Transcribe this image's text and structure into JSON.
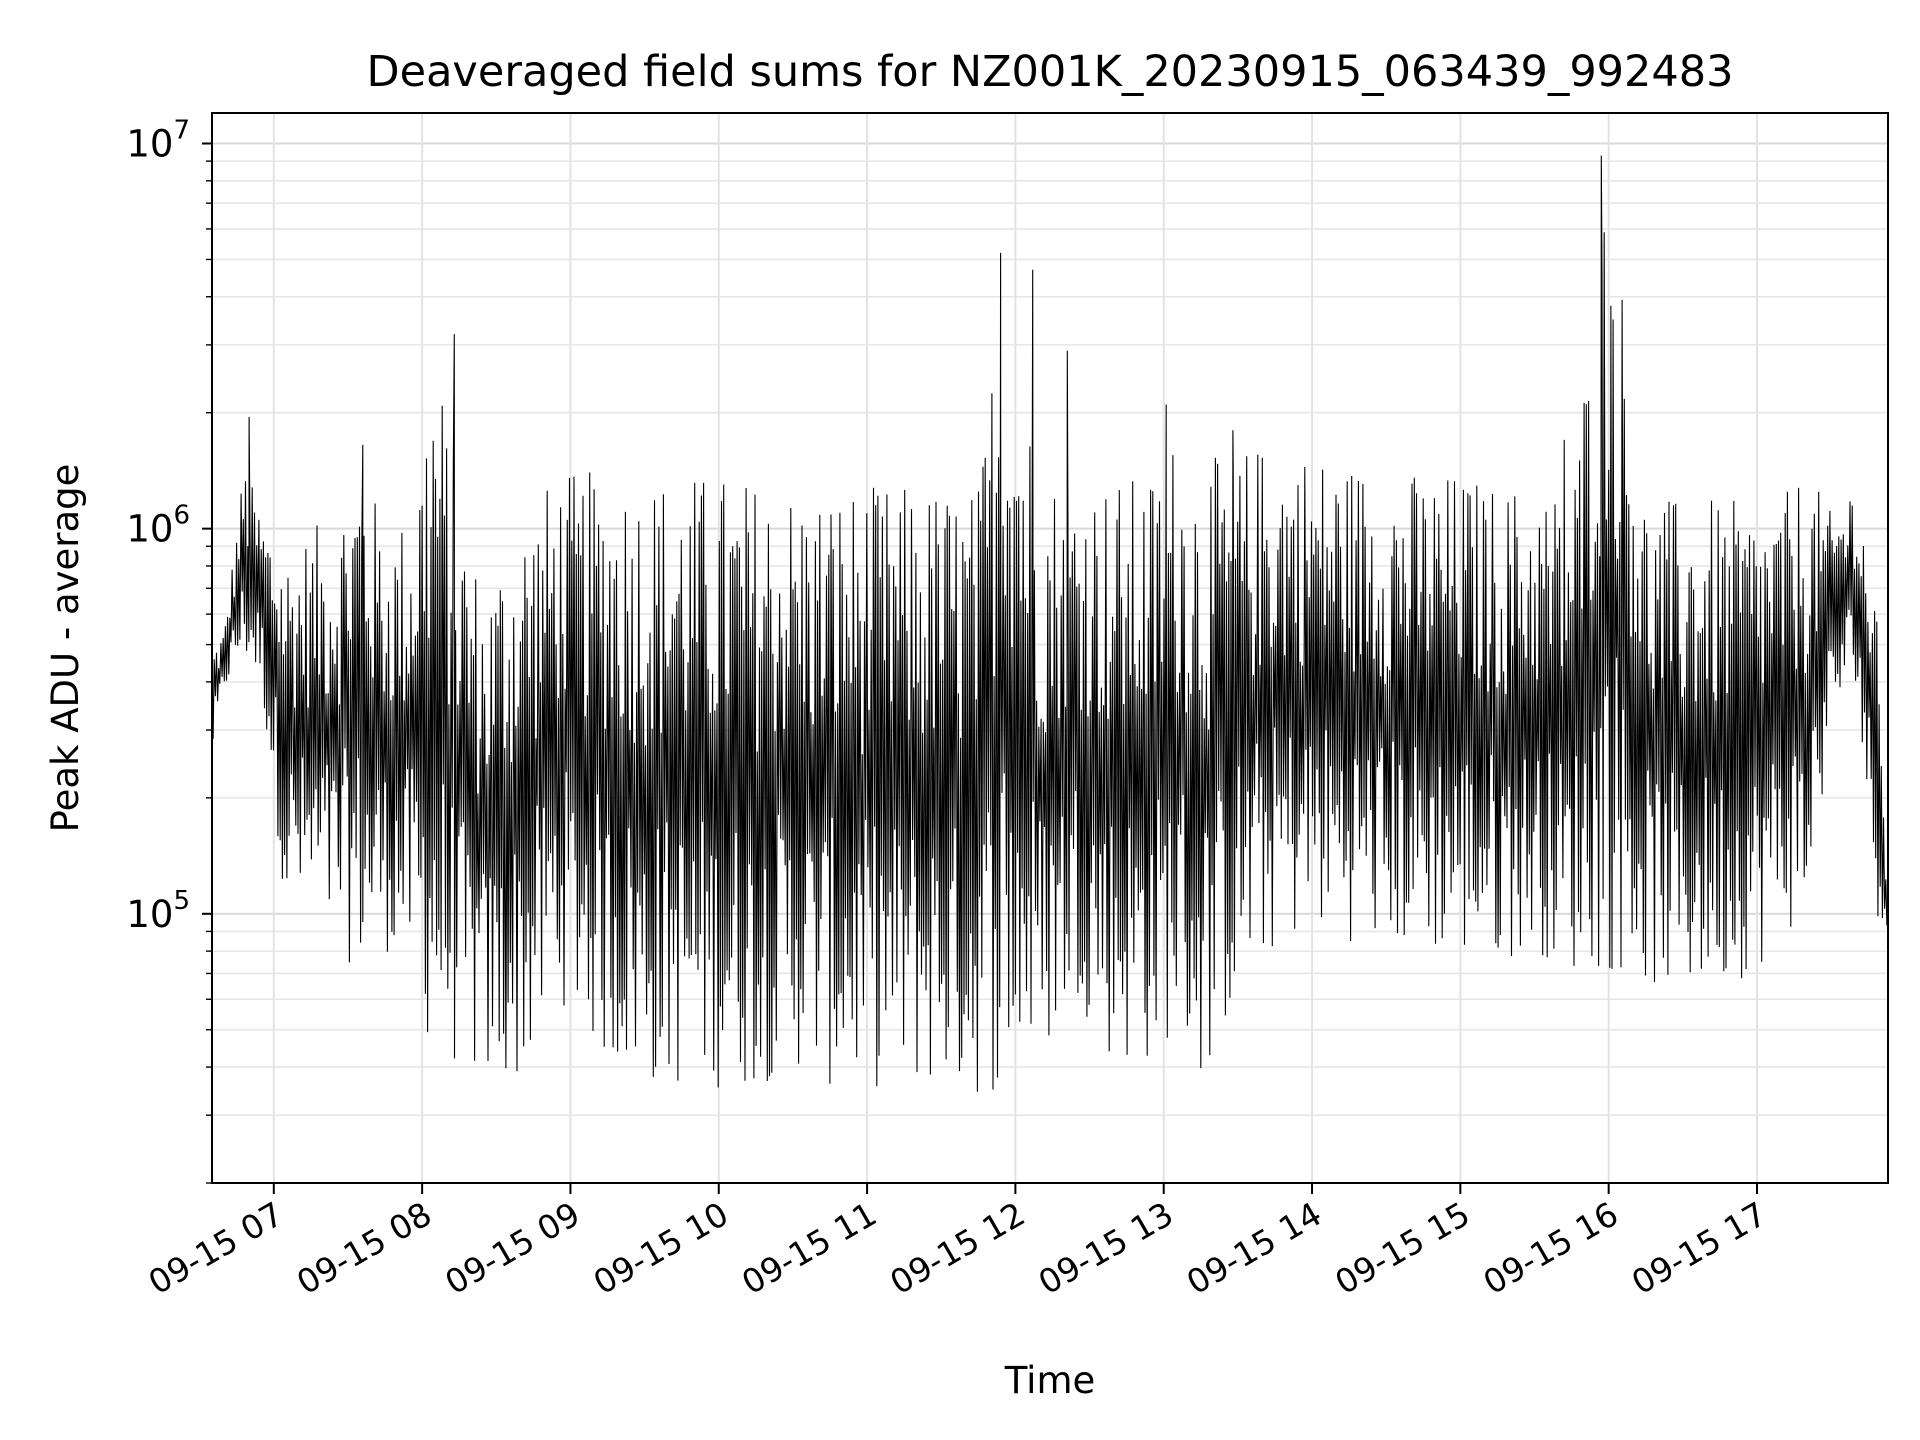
{
  "chart_data": {
    "type": "line",
    "title": "Deaveraged field sums for NZ001K_20230915_063439_992483",
    "xlabel": "Time",
    "ylabel": "Peak ADU - average",
    "yscale": "log",
    "ylim": [
      20000,
      12000000
    ],
    "xlim": [
      "2023-09-15 06:35",
      "2023-09-15 17:53"
    ],
    "grid": true,
    "line_color": "#000000",
    "x_ticks": [
      {
        "value": "2023-09-15 07:00",
        "label": "09-15 07"
      },
      {
        "value": "2023-09-15 08:00",
        "label": "09-15 08"
      },
      {
        "value": "2023-09-15 09:00",
        "label": "09-15 09"
      },
      {
        "value": "2023-09-15 10:00",
        "label": "09-15 10"
      },
      {
        "value": "2023-09-15 11:00",
        "label": "09-15 11"
      },
      {
        "value": "2023-09-15 12:00",
        "label": "09-15 12"
      },
      {
        "value": "2023-09-15 13:00",
        "label": "09-15 13"
      },
      {
        "value": "2023-09-15 14:00",
        "label": "09-15 14"
      },
      {
        "value": "2023-09-15 15:00",
        "label": "09-15 15"
      },
      {
        "value": "2023-09-15 16:00",
        "label": "09-15 16"
      },
      {
        "value": "2023-09-15 17:00",
        "label": "09-15 17"
      }
    ],
    "y_ticks": [
      {
        "value": 100000,
        "base": "10",
        "exp": "5"
      },
      {
        "value": 1000000,
        "base": "10",
        "exp": "6"
      },
      {
        "value": 10000000,
        "base": "10",
        "exp": "7"
      }
    ],
    "series": [
      {
        "x": [
          "2023-09-15 06:35",
          "2023-09-15 06:40",
          "2023-09-15 06:48",
          "2023-09-15 06:55",
          "2023-09-15 07:05",
          "2023-09-15 07:15",
          "2023-09-15 07:25",
          "2023-09-15 07:35",
          "2023-09-15 07:45",
          "2023-09-15 07:55",
          "2023-09-15 08:05",
          "2023-09-15 08:15",
          "2023-09-15 08:25",
          "2023-09-15 08:35",
          "2023-09-15 08:45",
          "2023-09-15 08:55",
          "2023-09-15 09:05",
          "2023-09-15 09:15",
          "2023-09-15 09:30",
          "2023-09-15 09:45",
          "2023-09-15 10:00",
          "2023-09-15 10:15",
          "2023-09-15 10:30",
          "2023-09-15 10:45",
          "2023-09-15 11:00",
          "2023-09-15 11:15",
          "2023-09-15 11:30",
          "2023-09-15 11:45",
          "2023-09-15 11:55",
          "2023-09-15 12:10",
          "2023-09-15 12:25",
          "2023-09-15 12:40",
          "2023-09-15 12:55",
          "2023-09-15 13:05",
          "2023-09-15 13:15",
          "2023-09-15 13:30",
          "2023-09-15 13:45",
          "2023-09-15 14:00",
          "2023-09-15 14:15",
          "2023-09-15 14:30",
          "2023-09-15 14:45",
          "2023-09-15 15:00",
          "2023-09-15 15:15",
          "2023-09-15 15:30",
          "2023-09-15 15:45",
          "2023-09-15 16:00",
          "2023-09-15 16:15",
          "2023-09-15 16:30",
          "2023-09-15 16:45",
          "2023-09-15 17:00",
          "2023-09-15 17:10",
          "2023-09-15 17:20",
          "2023-09-15 17:30",
          "2023-09-15 17:40",
          "2023-09-15 17:48",
          "2023-09-15 17:53"
        ],
        "y_low": [
          250000,
          380000,
          450000,
          380000,
          100000,
          90000,
          80000,
          70000,
          80000,
          70000,
          40000,
          40000,
          35000,
          35000,
          40000,
          60000,
          50000,
          40000,
          35000,
          35000,
          35000,
          35000,
          40000,
          35000,
          35000,
          35000,
          35000,
          33000,
          35000,
          40000,
          60000,
          40000,
          40000,
          50000,
          35000,
          60000,
          80000,
          90000,
          85000,
          80000,
          80000,
          75000,
          75000,
          80000,
          70000,
          70000,
          65000,
          60000,
          65000,
          70000,
          90000,
          90000,
          300000,
          400000,
          100000,
          90000
        ],
        "y_high": [
          500000,
          550000,
          1500000,
          1100000,
          900000,
          1000000,
          1100000,
          1600000,
          1000000,
          1100000,
          3200000,
          1200000,
          700000,
          1000000,
          1200000,
          1400000,
          1400000,
          1450000,
          1400000,
          1400000,
          1400000,
          1350000,
          1300000,
          1300000,
          1300000,
          1300000,
          1300000,
          1300000,
          5200000,
          1400000,
          1400000,
          1350000,
          1400000,
          1800000,
          1500000,
          1600000,
          1700000,
          1600000,
          1500000,
          1450000,
          1400000,
          1400000,
          1300000,
          1300000,
          1250000,
          9300000,
          1200000,
          1200000,
          1200000,
          1150000,
          1200000,
          1450000,
          1100000,
          1400000,
          700000,
          100000
        ],
        "spikes": [
          {
            "x": "2023-09-15 06:50",
            "y": 1950000
          },
          {
            "x": "2023-09-15 07:36",
            "y": 1650000
          },
          {
            "x": "2023-09-15 08:13",
            "y": 3200000
          },
          {
            "x": "2023-09-15 11:54",
            "y": 5200000
          },
          {
            "x": "2023-09-15 12:07",
            "y": 4700000
          },
          {
            "x": "2023-09-15 12:21",
            "y": 2900000
          },
          {
            "x": "2023-09-15 13:01",
            "y": 2100000
          },
          {
            "x": "2023-09-15 13:28",
            "y": 1800000
          },
          {
            "x": "2023-09-15 15:42",
            "y": 1700000
          },
          {
            "x": "2023-09-15 15:57",
            "y": 9300000
          }
        ]
      }
    ]
  }
}
